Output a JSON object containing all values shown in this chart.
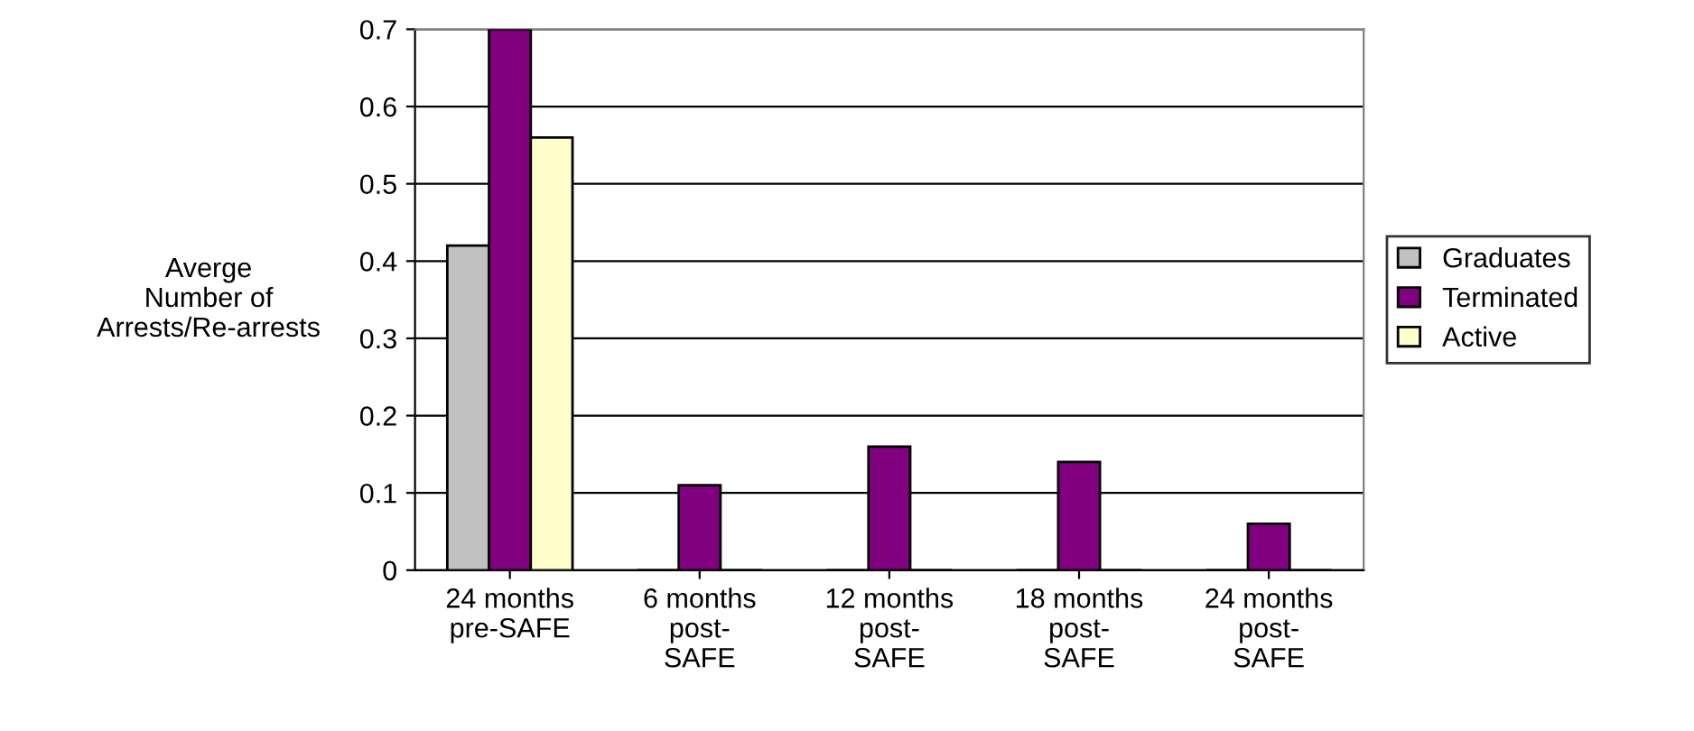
{
  "chart_data": {
    "type": "bar",
    "ylabel": "Averge\nNumber of\nArrests/Re-arrests",
    "categories": [
      "24 months\npre-SAFE",
      "6 months\npost-\nSAFE",
      "12 months\npost-\nSAFE",
      "18 months\npost-\nSAFE",
      "24 months\npost-\nSAFE"
    ],
    "series": [
      {
        "name": "Graduates",
        "color": "#c0c0c0",
        "values": [
          0.42,
          0,
          0,
          0,
          0
        ]
      },
      {
        "name": "Terminated",
        "color": "#800080",
        "values": [
          0.7,
          0.11,
          0.16,
          0.14,
          0.06
        ]
      },
      {
        "name": "Active",
        "color": "#ffffcc",
        "values": [
          0.56,
          0,
          0,
          0,
          0
        ]
      }
    ],
    "ylim": [
      0,
      0.7
    ],
    "yticks": [
      0,
      0.1,
      0.2,
      0.3,
      0.4,
      0.5,
      0.6,
      0.7
    ],
    "grid": "y",
    "legend": "right"
  }
}
